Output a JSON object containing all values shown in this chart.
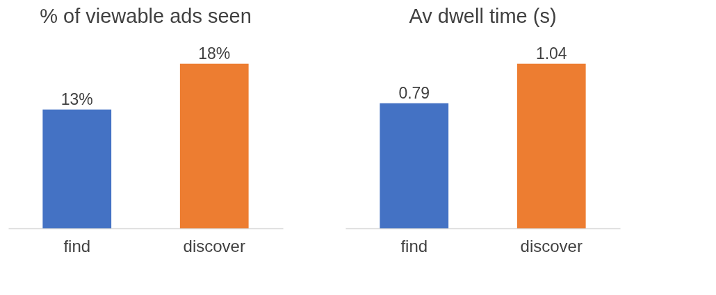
{
  "chart_data": [
    {
      "type": "bar",
      "title": "% of viewable ads seen",
      "categories": [
        "find",
        "discover"
      ],
      "values": [
        13,
        18
      ],
      "colors": [
        "#4472c4",
        "#ed7d31"
      ],
      "value_labels": [
        "13%",
        "18%"
      ]
    },
    {
      "type": "bar",
      "title": "Av dwell time (s)",
      "categories": [
        "find",
        "discover"
      ],
      "values": [
        0.79,
        1.04
      ],
      "colors": [
        "#4472c4",
        "#ed7d31"
      ],
      "data_labels": true
    }
  ]
}
